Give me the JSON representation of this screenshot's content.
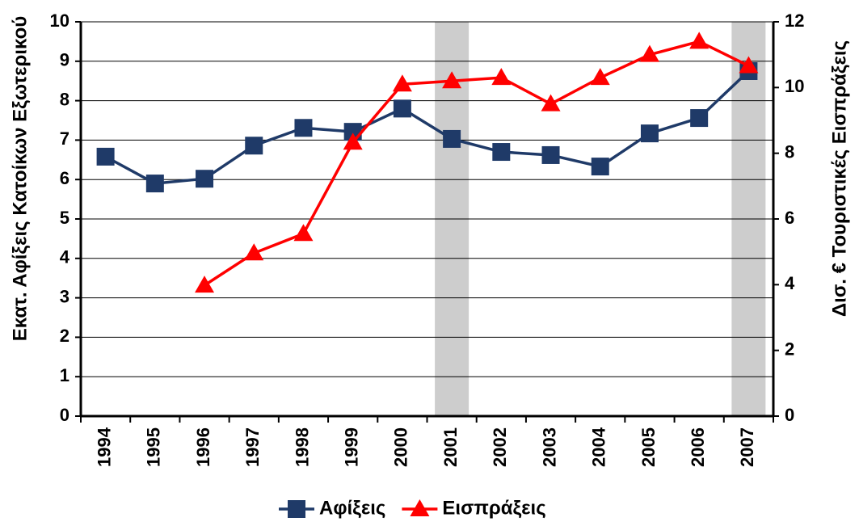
{
  "chart_data": {
    "type": "line",
    "categories": [
      "1994",
      "1995",
      "1996",
      "1997",
      "1998",
      "1999",
      "2000",
      "2001",
      "2002",
      "2003",
      "2004",
      "2005",
      "2006",
      "2007"
    ],
    "y_label": "Εκατ. Αφίξεις Κατοίκων Εξωτερικού",
    "y2_label": "Δισ. €  Τουριστικές Εισπράξεις",
    "ylim": [
      0,
      10
    ],
    "yticks": [
      0,
      1,
      2,
      3,
      4,
      5,
      6,
      7,
      8,
      9,
      10
    ],
    "y2lim": [
      0,
      12
    ],
    "y2ticks": [
      0,
      2,
      4,
      6,
      8,
      10,
      12
    ],
    "grid": true,
    "highlight": [
      "2001",
      "2007"
    ],
    "legend": "bottom",
    "series": [
      {
        "name": "Αφίξεις",
        "color": "#1f3a68",
        "marker": "square",
        "values": [
          6.58,
          5.9,
          6.02,
          6.86,
          7.31,
          7.21,
          7.8,
          7.03,
          6.7,
          6.62,
          6.33,
          7.17,
          7.56,
          8.75
        ]
      },
      {
        "name": "Εισπράξεις",
        "color": "#ff0000",
        "marker": "triangle",
        "axis": "y2",
        "values": [
          null,
          null,
          3.98,
          4.96,
          5.55,
          8.33,
          10.1,
          10.2,
          10.3,
          9.5,
          10.3,
          11.0,
          11.4,
          10.66
        ]
      }
    ]
  }
}
